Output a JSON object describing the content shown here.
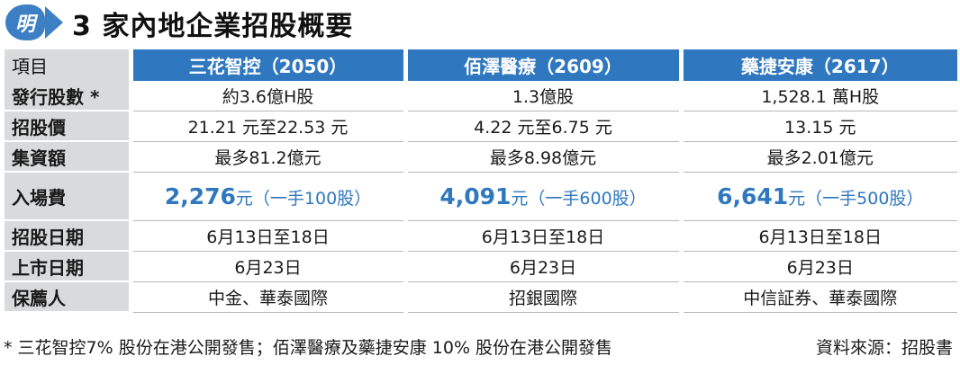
{
  "header": {
    "logo": "明",
    "title": "3 家內地企業招股概要"
  },
  "table": {
    "label_header": "項目",
    "companies": [
      "三花智控（2050）",
      "佰澤醫療（2609）",
      "藥捷安康（2617）"
    ],
    "rows": [
      {
        "label": "發行股數 *",
        "values": [
          "約3.6億H股",
          "1.3億股",
          "1,528.1 萬H股"
        ]
      },
      {
        "label": "招股價",
        "values": [
          "21.21 元至22.53 元",
          "4.22 元至6.75 元",
          "13.15 元"
        ]
      },
      {
        "label": "集資額",
        "values": [
          "最多81.2億元",
          "最多8.98億元",
          "最多2.01億元"
        ]
      }
    ],
    "fee_row": {
      "label": "入場費",
      "values": [
        {
          "amount": "2,276",
          "unit": "元（一手100股）"
        },
        {
          "amount": "4,091",
          "unit": "元（一手600股）"
        },
        {
          "amount": "6,641",
          "unit": "元（一手500股）"
        }
      ]
    },
    "rows2": [
      {
        "label": "招股日期",
        "values": [
          "6月13日至18日",
          "6月13日至18日",
          "6月13日至18日"
        ]
      },
      {
        "label": "上市日期",
        "values": [
          "6月23日",
          "6月23日",
          "6月23日"
        ]
      },
      {
        "label": "保薦人",
        "values": [
          "中金、華泰國際",
          "招銀國際",
          "中信証券、華泰國際"
        ]
      }
    ]
  },
  "footer": {
    "note": "* 三花智控7% 股份在港公開發售；佰澤醫療及藥捷安康 10% 股份在港公開發售",
    "source": "資料來源：招股書"
  },
  "colors": {
    "accent": "#2f78bf",
    "label_bg": "#d9dadb"
  }
}
